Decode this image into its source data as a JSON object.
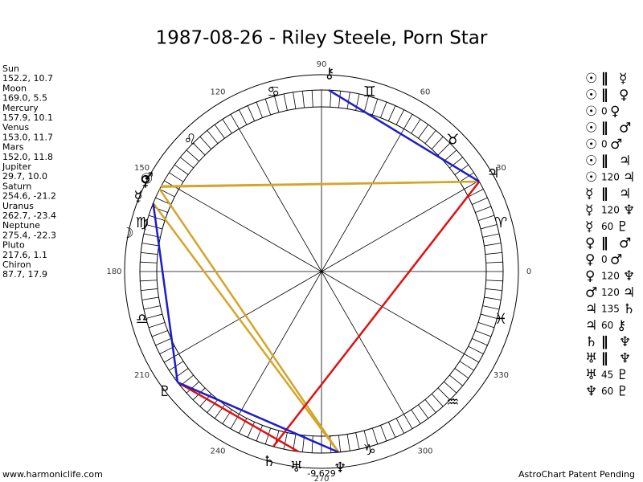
{
  "title": "1987-08-26 - Riley Steele, Porn Star",
  "planets": [
    {
      "name": "Sun",
      "glyph": "☉",
      "position": "152.2, 10.7"
    },
    {
      "name": "Moon",
      "glyph": "☽",
      "position": "169.0, 5.5"
    },
    {
      "name": "Mercury",
      "glyph": "☿",
      "position": "157.9, 10.1"
    },
    {
      "name": "Venus",
      "glyph": "♀",
      "position": "153.0, 11.7"
    },
    {
      "name": "Mars",
      "glyph": "♂",
      "position": "152.0, 11.8"
    },
    {
      "name": "Jupiter",
      "glyph": "♃",
      "position": "29.7, 10.0"
    },
    {
      "name": "Saturn",
      "glyph": "♄",
      "position": "254.6, -21.2"
    },
    {
      "name": "Uranus",
      "glyph": "♅",
      "position": "262.7, -23.4"
    },
    {
      "name": "Neptune",
      "glyph": "♆",
      "position": "275.4, -22.3"
    },
    {
      "name": "Pluto",
      "glyph": "♇",
      "position": "217.6, 1.1"
    },
    {
      "name": "Chiron",
      "glyph": "⚷",
      "position": "87.7, 17.9"
    }
  ],
  "signs": [
    "♈",
    "♉",
    "♊",
    "♋",
    "♌",
    "♍",
    "♎",
    null,
    null,
    "♑",
    "♒",
    "♓"
  ],
  "degrees": [
    0,
    30,
    60,
    90,
    120,
    150,
    180,
    210,
    240,
    270,
    300,
    330
  ],
  "aspects": [
    [
      "☉",
      "∥",
      "☿"
    ],
    [
      "☉",
      "∥",
      "♀"
    ],
    [
      "☉",
      "0",
      "♀"
    ],
    [
      "☉",
      "∥",
      "♂"
    ],
    [
      "☉",
      "0",
      "♂"
    ],
    [
      "☉",
      "∥",
      "♃"
    ],
    [
      "☉",
      "120",
      "♃"
    ],
    [
      "☿",
      "∥",
      "♃"
    ],
    [
      "☿",
      "120",
      "♆"
    ],
    [
      "☿",
      "60",
      "♇"
    ],
    [
      "♀",
      "∥",
      "♂"
    ],
    [
      "♀",
      "0",
      "♂"
    ],
    [
      "♀",
      "120",
      "♆"
    ],
    [
      "♂",
      "120",
      "♃"
    ],
    [
      "♃",
      "135",
      "♄"
    ],
    [
      "♃",
      "60",
      "⚷"
    ],
    [
      "♄",
      "∥",
      "♆"
    ],
    [
      "♅",
      "∥",
      "♆"
    ],
    [
      "♅",
      "45",
      "♇"
    ],
    [
      "♆",
      "60",
      "♇"
    ]
  ],
  "line_colors": {
    "120": "#d4a52a",
    "60": "#1c1ccc",
    "45": "#dd1111",
    "135": "#dd1111"
  },
  "bottom_label": "-9,629",
  "footer": {
    "left": "www.harmoniclife.com",
    "right": "AstroChart Patent Pending"
  }
}
